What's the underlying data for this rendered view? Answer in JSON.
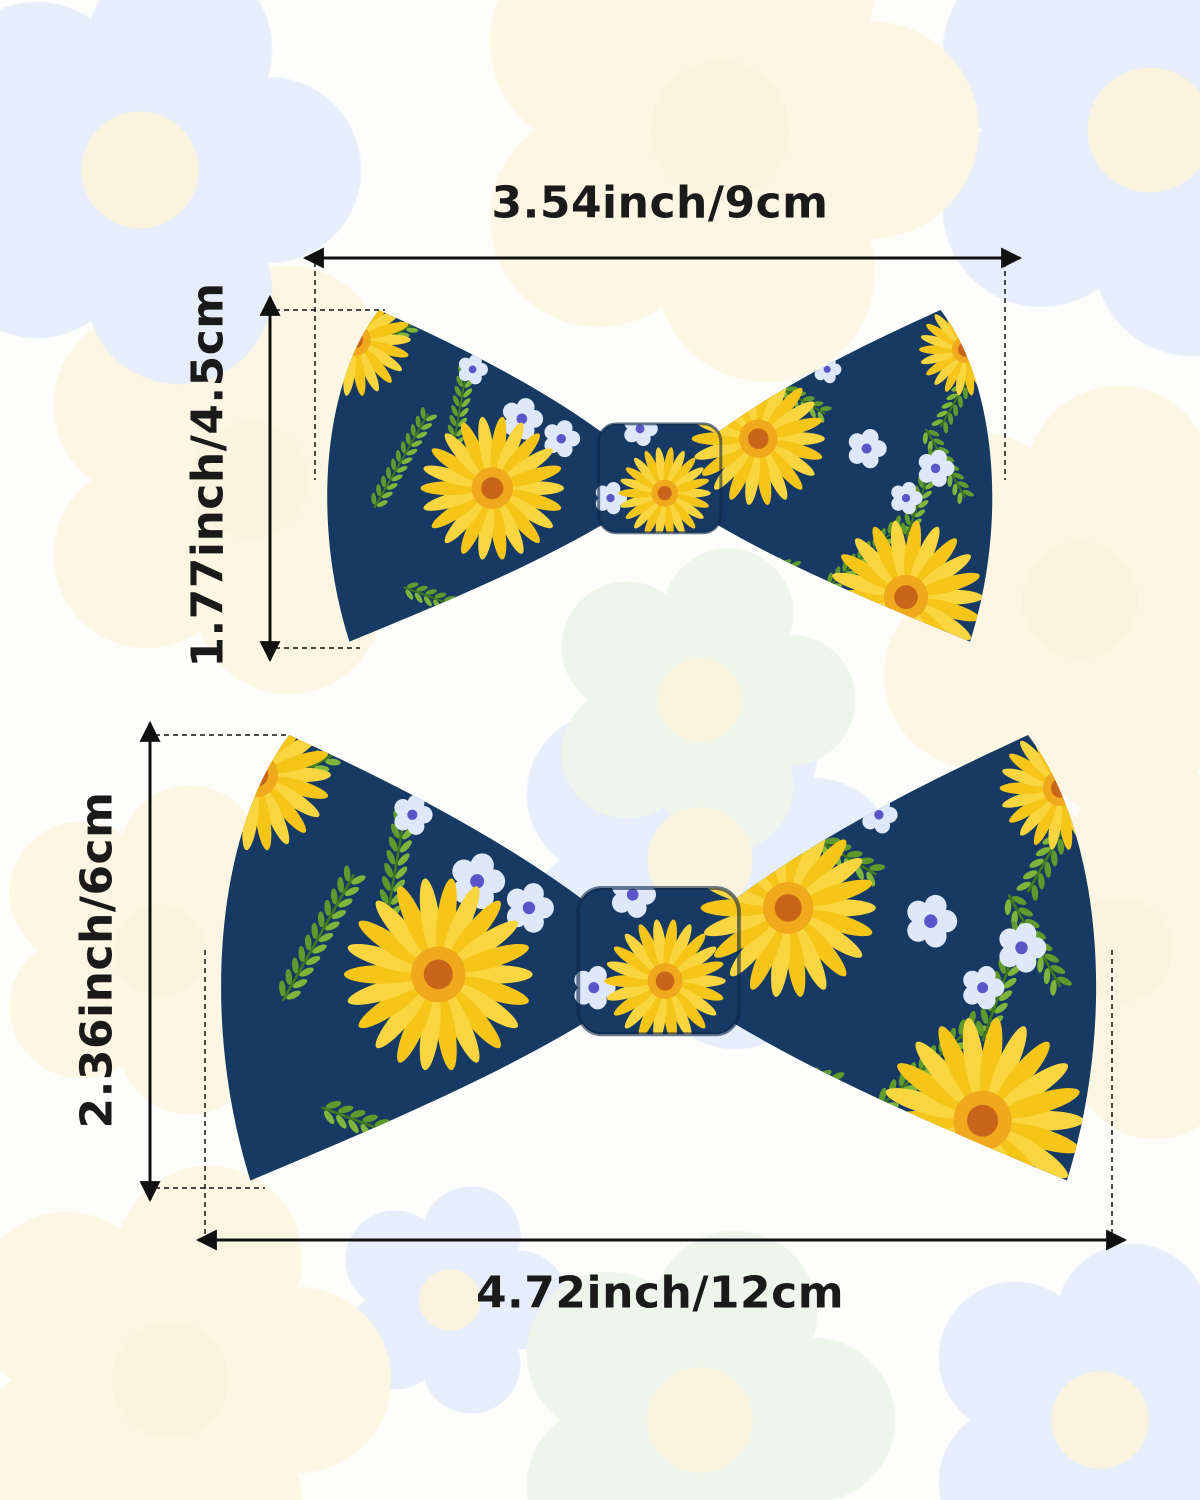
{
  "dimensions": {
    "small_width": "3.54inch/9cm",
    "small_height": "1.77inch/4.5cm",
    "large_height": "2.36inch/6cm",
    "large_width": "4.72inch/12cm"
  },
  "colors": {
    "fabric": "#163a63",
    "sunflower": "#f5c518",
    "sunflower_center": "#c9651b",
    "leaf": "#5f9a2c",
    "small_flower": "#dfe8fb",
    "background_flower_blue": "#e6eefb",
    "background_flower_yellow": "#fdf6e2",
    "background_flower_green": "#eef5ea"
  }
}
